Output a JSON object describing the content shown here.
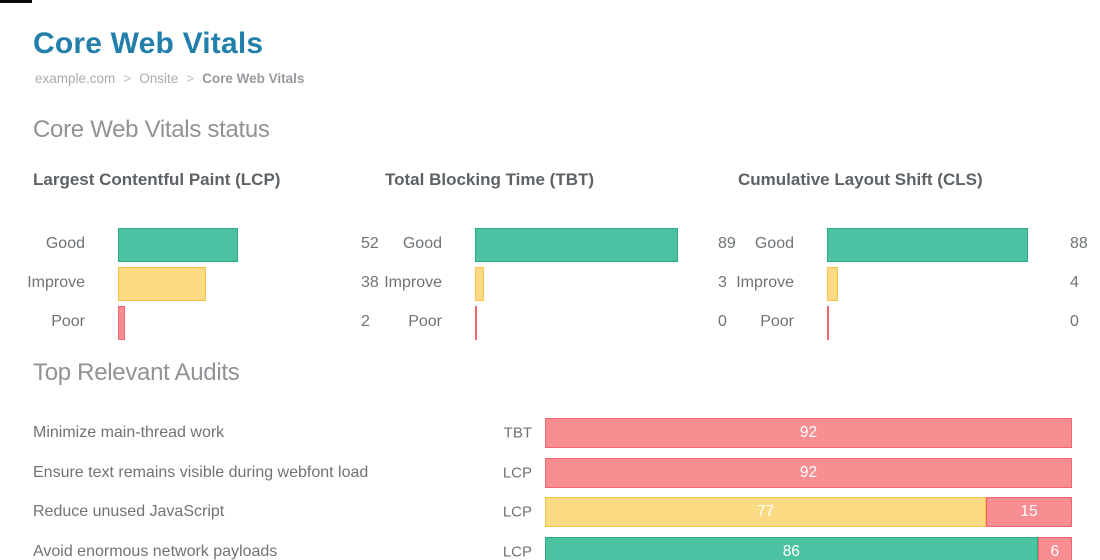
{
  "ui": {
    "title": "Core Web Vitals",
    "breadcrumb": {
      "items": [
        "example.com",
        "Onsite",
        "Core Web Vitals"
      ],
      "separator": ">"
    },
    "status_heading": "Core Web Vitals status",
    "audits_heading": "Top Relevant Audits"
  },
  "colors": {
    "title_accent": "#217FA9",
    "status": {
      "good": {
        "fill": "#4DC2A3",
        "border": "#2AAB86"
      },
      "improve": {
        "fill": "#FADA83",
        "border": "#F5C248"
      },
      "poor": {
        "fill": "#F88E92",
        "border": "#F2676E"
      }
    },
    "bar_value_text": "#FFFFFF",
    "body_text": "#6E7377"
  },
  "chart_data": [
    {
      "type": "bar",
      "orientation": "horizontal",
      "title": "Largest Contentful Paint (LCP)",
      "categories": [
        "Good",
        "Improve",
        "Poor"
      ],
      "statuses": [
        "good",
        "improve",
        "poor"
      ],
      "values": [
        52,
        38,
        2
      ],
      "xlim": [
        0,
        100
      ],
      "value_labels": true,
      "grid": false,
      "legend": false
    },
    {
      "type": "bar",
      "orientation": "horizontal",
      "title": "Total Blocking Time (TBT)",
      "categories": [
        "Good",
        "Improve",
        "Poor"
      ],
      "statuses": [
        "good",
        "improve",
        "poor"
      ],
      "values": [
        89,
        3,
        0
      ],
      "xlim": [
        0,
        100
      ],
      "value_labels": true,
      "grid": false,
      "legend": false
    },
    {
      "type": "bar",
      "orientation": "horizontal",
      "title": "Cumulative Layout Shift (CLS)",
      "categories": [
        "Good",
        "Improve",
        "Poor"
      ],
      "statuses": [
        "good",
        "improve",
        "poor"
      ],
      "values": [
        88,
        4,
        0
      ],
      "xlim": [
        0,
        100
      ],
      "value_labels": true,
      "grid": false,
      "legend": false
    },
    {
      "type": "bar",
      "subtype": "stacked",
      "orientation": "horizontal",
      "title": "Top Relevant Audits",
      "scale_max": 92,
      "value_labels": "inside",
      "rows": [
        {
          "label": "Minimize main-thread work",
          "metric": "TBT",
          "segments": [
            {
              "status": "poor",
              "value": 92
            }
          ]
        },
        {
          "label": "Ensure text remains visible during webfont load",
          "metric": "LCP",
          "segments": [
            {
              "status": "poor",
              "value": 92
            }
          ]
        },
        {
          "label": "Reduce unused JavaScript",
          "metric": "LCP",
          "segments": [
            {
              "status": "improve",
              "value": 77
            },
            {
              "status": "poor",
              "value": 15
            }
          ]
        },
        {
          "label": "Avoid enormous network payloads",
          "metric": "LCP",
          "segments": [
            {
              "status": "good",
              "value": 86
            },
            {
              "status": "poor",
              "value": 6
            }
          ]
        }
      ]
    }
  ]
}
